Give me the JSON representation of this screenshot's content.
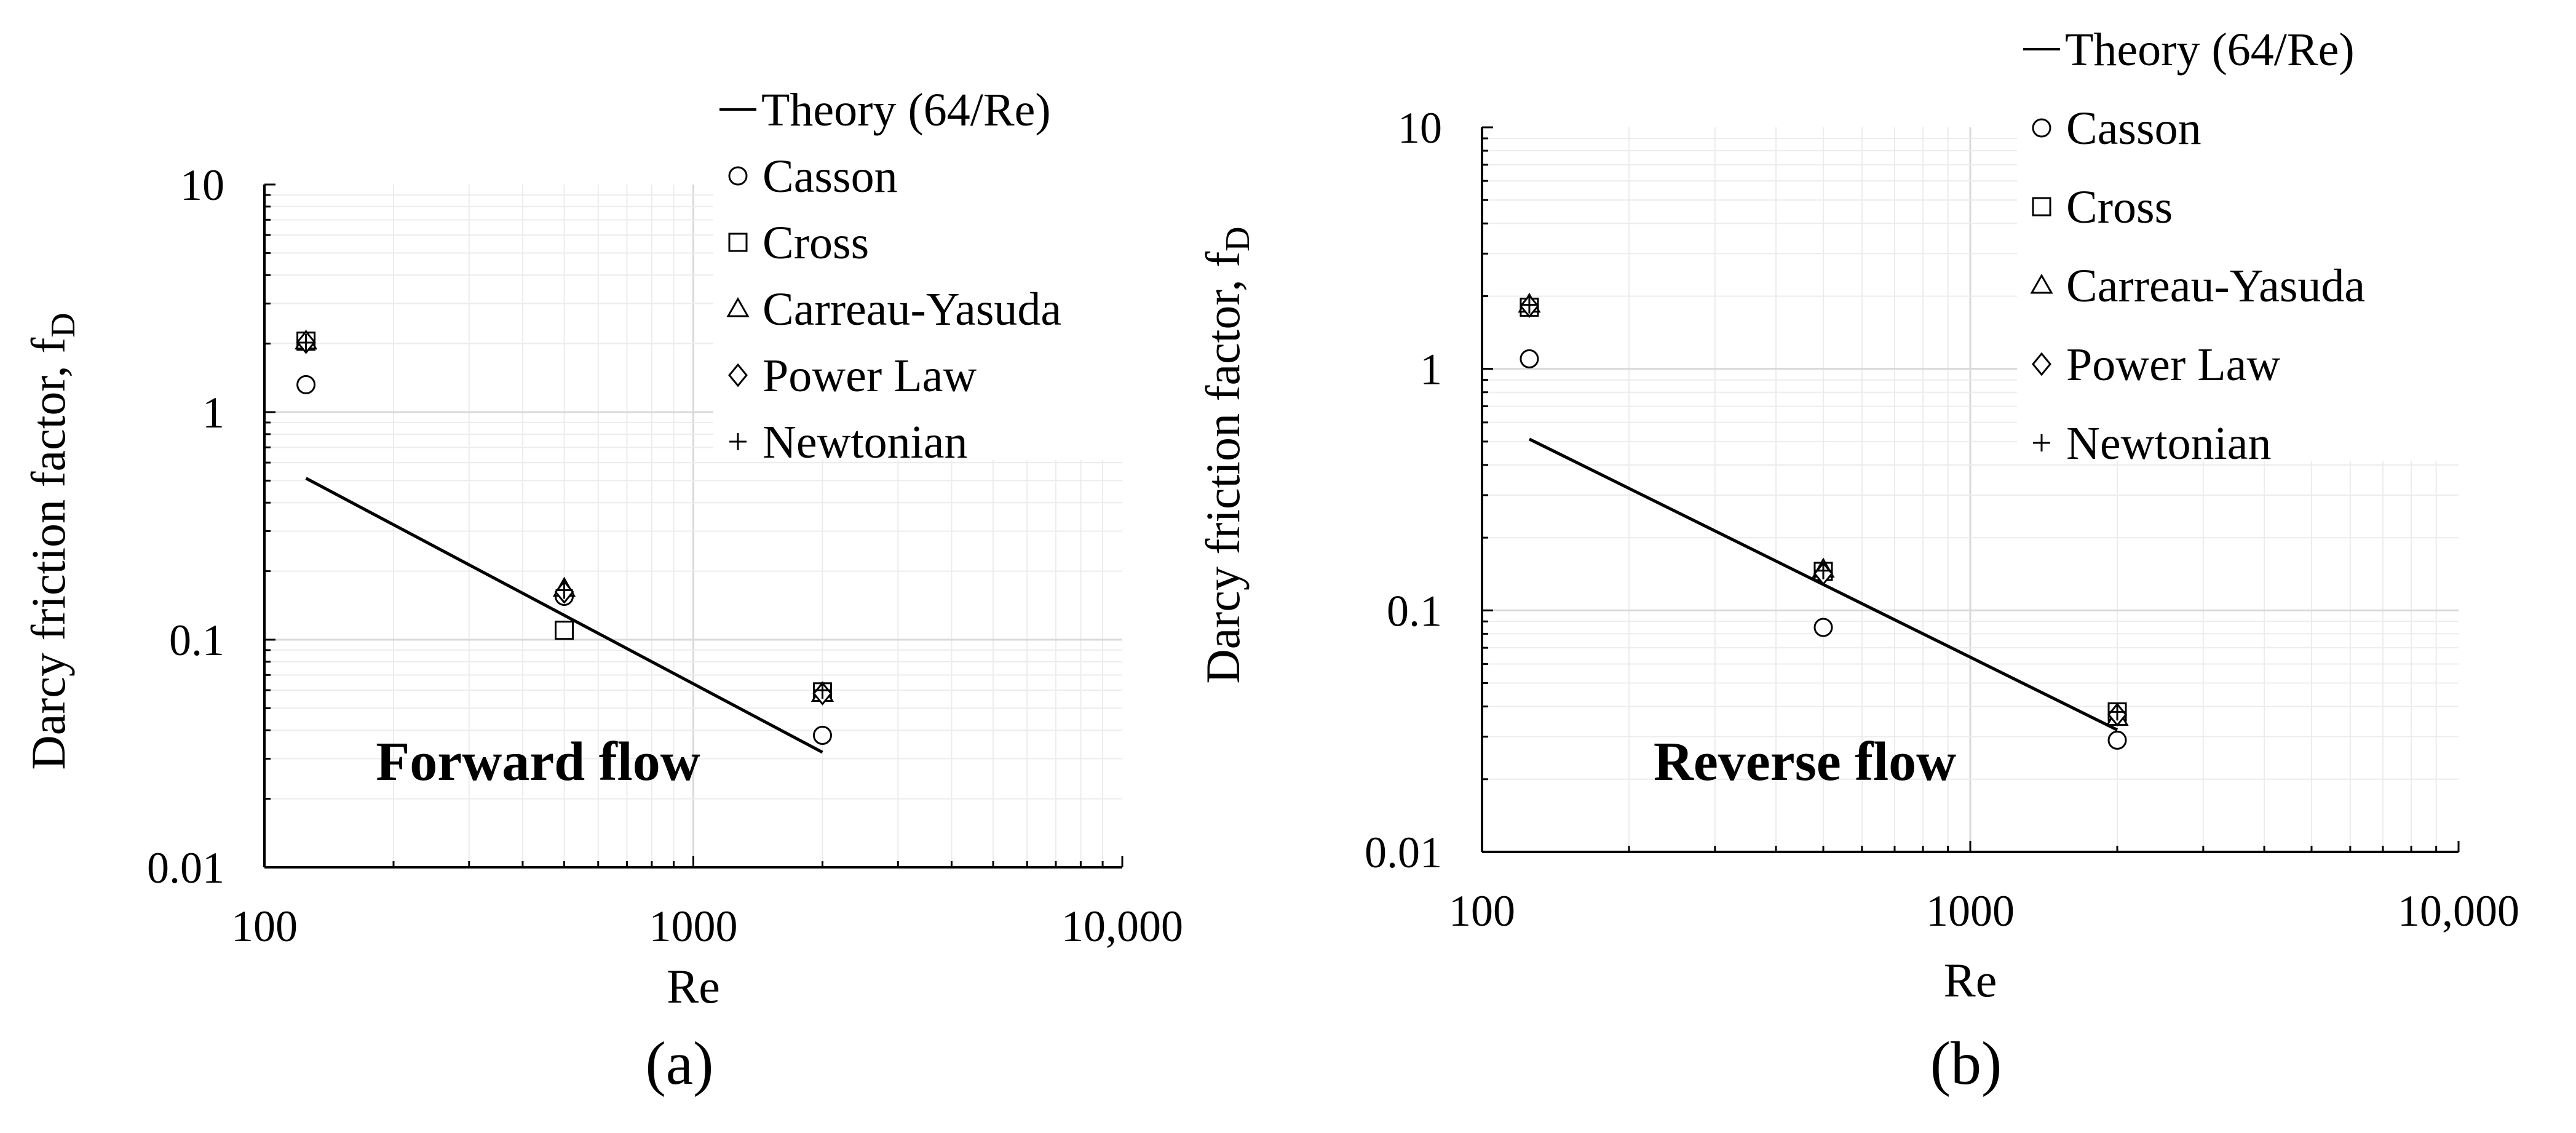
{
  "figure": {
    "panels": [
      {
        "panel_label": "(a)",
        "annotation": "Forward flow"
      },
      {
        "panel_label": "(b)",
        "annotation": "Reverse flow"
      }
    ]
  },
  "colors": {
    "axis": "#000000",
    "grid_major": "#d9d9d9",
    "grid_minor": "#ececec",
    "series": "#000000"
  },
  "chart_data": [
    {
      "type": "scatter",
      "title": "Forward flow",
      "xlabel": "Re",
      "ylabel_main": "Darcy  friction  factor,  f",
      "ylabel_sub": "D",
      "xscale": "log",
      "yscale": "log",
      "xlim": [
        100,
        10000
      ],
      "ylim": [
        0.01,
        10
      ],
      "xticks": [
        "100",
        "1000",
        "10,000"
      ],
      "yticks": [
        "0.01",
        "0.1",
        "1",
        "10"
      ],
      "grid": true,
      "legend_position": "top-right",
      "series": [
        {
          "name": "Theory (64/Re)",
          "kind": "line",
          "marker": "line",
          "x": [
            125,
            2000
          ],
          "y": [
            0.512,
            0.032
          ]
        },
        {
          "name": "Casson",
          "kind": "scatter",
          "marker": "circle",
          "x": [
            125,
            500,
            2000
          ],
          "y": [
            1.32,
            0.155,
            0.038
          ]
        },
        {
          "name": "Cross",
          "kind": "scatter",
          "marker": "square",
          "x": [
            125,
            500,
            2000
          ],
          "y": [
            2.05,
            0.11,
            0.059
          ]
        },
        {
          "name": "Carreau-Yasuda",
          "kind": "scatter",
          "marker": "triangle",
          "x": [
            125,
            500,
            2000
          ],
          "y": [
            2.05,
            0.168,
            0.058
          ]
        },
        {
          "name": "Power Law",
          "kind": "scatter",
          "marker": "diamond",
          "x": [
            125,
            500,
            2000
          ],
          "y": [
            2.03,
            0.162,
            0.058
          ]
        },
        {
          "name": "Newtonian",
          "kind": "scatter",
          "marker": "plus",
          "x": [
            125,
            500,
            2000
          ],
          "y": [
            2.02,
            0.165,
            0.06
          ]
        }
      ]
    },
    {
      "type": "scatter",
      "title": "Reverse flow",
      "xlabel": "Re",
      "ylabel_main": "Darcy  friction  factor,  f",
      "ylabel_sub": "D",
      "xscale": "log",
      "yscale": "log",
      "xlim": [
        100,
        10000
      ],
      "ylim": [
        0.01,
        10
      ],
      "xticks": [
        "100",
        "1000",
        "10,000"
      ],
      "yticks": [
        "0.01",
        "0.1",
        "1",
        "10"
      ],
      "grid": true,
      "legend_position": "top-right",
      "series": [
        {
          "name": "Theory (64/Re)",
          "kind": "line",
          "marker": "line",
          "x": [
            125,
            2000
          ],
          "y": [
            0.512,
            0.032
          ]
        },
        {
          "name": "Casson",
          "kind": "scatter",
          "marker": "circle",
          "x": [
            125,
            500,
            2000
          ],
          "y": [
            1.1,
            0.085,
            0.029
          ]
        },
        {
          "name": "Cross",
          "kind": "scatter",
          "marker": "square",
          "x": [
            125,
            500,
            2000
          ],
          "y": [
            1.8,
            0.145,
            0.038
          ]
        },
        {
          "name": "Carreau-Yasuda",
          "kind": "scatter",
          "marker": "triangle",
          "x": [
            125,
            500,
            2000
          ],
          "y": [
            1.85,
            0.148,
            0.036
          ]
        },
        {
          "name": "Power Law",
          "kind": "scatter",
          "marker": "diamond",
          "x": [
            125,
            500,
            2000
          ],
          "y": [
            1.82,
            0.142,
            0.037
          ]
        },
        {
          "name": "Newtonian",
          "kind": "scatter",
          "marker": "plus",
          "x": [
            125,
            500,
            2000
          ],
          "y": [
            1.84,
            0.146,
            0.038
          ]
        }
      ]
    }
  ]
}
